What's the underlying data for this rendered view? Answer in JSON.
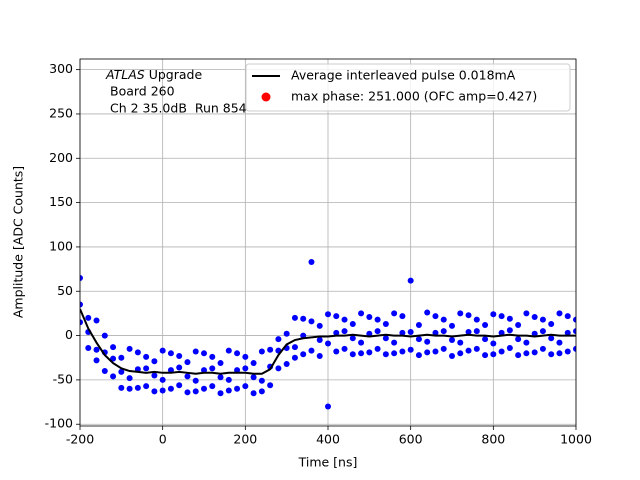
{
  "chart_data": {
    "type": "scatter",
    "xlabel": "Time [ns]",
    "ylabel": "Amplitude [ADC Counts]",
    "annotation": {
      "experiment": "ATLAS",
      "line1": "Upgrade",
      "line2": "Board 260",
      "line3": "Ch 2 35.0dB  Run 854"
    },
    "xlim": [
      -200,
      1000
    ],
    "ylim": [
      -102,
      312
    ],
    "xticks": [
      -200,
      0,
      200,
      400,
      600,
      800,
      1000
    ],
    "yticks": [
      -100,
      -50,
      0,
      50,
      100,
      150,
      200,
      250,
      300
    ],
    "grid": true,
    "legend": "upper right",
    "scatter": {
      "color": "#0000ff",
      "x": [
        -200,
        -200,
        -200,
        -180,
        -180,
        -180,
        -160,
        -160,
        -160,
        -140,
        -140,
        -140,
        -120,
        -120,
        -120,
        -100,
        -100,
        -100,
        -80,
        -80,
        -80,
        -60,
        -60,
        -60,
        -40,
        -40,
        -40,
        -20,
        -20,
        -20,
        0,
        0,
        0,
        20,
        20,
        20,
        40,
        40,
        40,
        60,
        60,
        60,
        80,
        80,
        80,
        100,
        100,
        100,
        120,
        120,
        120,
        140,
        140,
        140,
        160,
        160,
        160,
        180,
        180,
        180,
        200,
        200,
        200,
        220,
        220,
        220,
        240,
        240,
        240,
        260,
        260,
        260,
        280,
        280,
        280,
        300,
        300,
        300,
        320,
        320,
        320,
        340,
        340,
        340,
        360,
        360,
        360,
        380,
        380,
        380,
        400,
        400,
        400,
        420,
        420,
        420,
        440,
        440,
        440,
        460,
        460,
        460,
        480,
        480,
        480,
        500,
        500,
        500,
        520,
        520,
        520,
        540,
        540,
        540,
        560,
        560,
        560,
        580,
        580,
        580,
        600,
        600,
        600,
        620,
        620,
        620,
        640,
        640,
        640,
        660,
        660,
        660,
        680,
        680,
        680,
        700,
        700,
        700,
        720,
        720,
        720,
        740,
        740,
        740,
        760,
        760,
        760,
        780,
        780,
        780,
        800,
        800,
        800,
        820,
        820,
        820,
        840,
        840,
        840,
        860,
        860,
        860,
        880,
        880,
        880,
        900,
        900,
        900,
        920,
        920,
        920,
        940,
        940,
        940,
        960,
        960,
        960,
        980,
        980,
        980,
        1000,
        1000,
        1000
      ],
      "values": [
        65,
        15,
        35,
        -14,
        20,
        4,
        17,
        -16,
        -28,
        -40,
        0,
        -19,
        -13,
        -46,
        -26,
        -59,
        -25,
        -41,
        -15,
        -48,
        -60,
        -59,
        -19,
        -38,
        -24,
        -57,
        -37,
        -63,
        -29,
        -45,
        -17,
        -50,
        -62,
        -60,
        -20,
        -39,
        -23,
        -56,
        -36,
        -64,
        -30,
        -46,
        -18,
        -51,
        -63,
        -60,
        -20,
        -39,
        -24,
        -57,
        -37,
        -65,
        -31,
        -47,
        -17,
        -50,
        -62,
        -60,
        -20,
        -39,
        -24,
        -57,
        -37,
        -65,
        -31,
        -47,
        -18,
        -51,
        -63,
        -56,
        -16,
        -35,
        -4,
        -37,
        -17,
        -32,
        2,
        -14,
        20,
        -13,
        -25,
        -21,
        19,
        0,
        16,
        -17,
        83,
        -23,
        11,
        -5,
        24,
        -9,
        -80,
        -18,
        22,
        3,
        18,
        -15,
        5,
        -21,
        13,
        -3,
        25,
        -8,
        -20,
        -19,
        21,
        2,
        18,
        -15,
        5,
        -21,
        13,
        -3,
        25,
        -8,
        -20,
        -18,
        22,
        3,
        62,
        -16,
        4,
        -22,
        12,
        -4,
        26,
        -7,
        -19,
        -18,
        22,
        3,
        18,
        -15,
        5,
        -23,
        11,
        -5,
        25,
        -8,
        -20,
        -17,
        23,
        4,
        18,
        -15,
        5,
        -22,
        12,
        -4,
        24,
        -9,
        -21,
        -18,
        22,
        3,
        19,
        -14,
        6,
        -22,
        12,
        -4,
        25,
        -8,
        -20,
        -19,
        21,
        2,
        18,
        -15,
        5,
        -21,
        13,
        -3,
        25,
        -8,
        -20,
        -18,
        22,
        3,
        18,
        -15,
        5
      ]
    },
    "line": {
      "name": "Average interleaved pulse 0.018mA",
      "color": "#000000",
      "x": [
        -200,
        -180,
        -160,
        -140,
        -120,
        -100,
        -80,
        -60,
        -40,
        -20,
        0,
        20,
        40,
        60,
        80,
        100,
        120,
        140,
        160,
        180,
        200,
        220,
        240,
        260,
        280,
        300,
        320,
        340,
        360,
        380,
        400,
        420,
        440,
        460,
        480,
        500,
        520,
        540,
        560,
        580,
        600,
        620,
        640,
        660,
        680,
        700,
        720,
        740,
        760,
        780,
        800,
        820,
        840,
        860,
        880,
        900,
        920,
        940,
        960,
        980,
        1000
      ],
      "values": [
        30,
        8,
        -8,
        -22,
        -31,
        -37,
        -40,
        -41,
        -42,
        -41,
        -42,
        -42,
        -41,
        -42,
        -43,
        -42,
        -42,
        -43,
        -42,
        -42,
        -42,
        -43,
        -43,
        -38,
        -22,
        -10,
        -5,
        -3,
        -2,
        -1,
        -1,
        0,
        0,
        1,
        0,
        -1,
        0,
        1,
        0,
        0,
        -1,
        0,
        1,
        0,
        0,
        -1,
        0,
        1,
        0,
        0,
        -1,
        0,
        1,
        0,
        0,
        -1,
        0,
        1,
        0,
        0,
        0
      ]
    },
    "marker": {
      "name": "max phase: 251.000 (OFC amp=0.427)",
      "color": "#ff0000"
    }
  }
}
